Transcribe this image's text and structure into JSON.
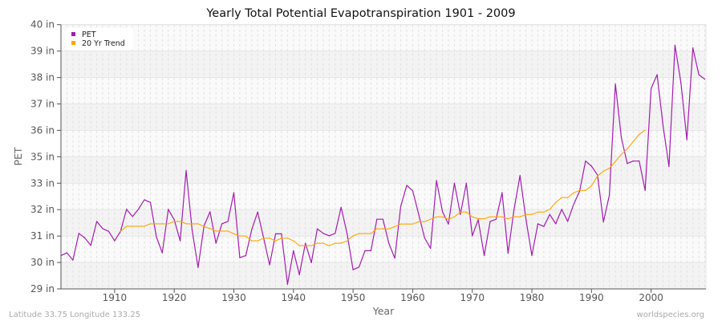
{
  "chart_data": {
    "type": "line",
    "title": "Yearly Total Potential Evapotranspiration 1901 - 2009",
    "xlabel": "Year",
    "ylabel": "PET",
    "xlim": [
      1901,
      2009
    ],
    "ylim": [
      29,
      40
    ],
    "x_ticks": [
      1910,
      1920,
      1930,
      1940,
      1950,
      1960,
      1970,
      1980,
      1990,
      2000
    ],
    "y_ticks": [
      29,
      30.1,
      31.2,
      32.3,
      33.4,
      34.5,
      35.6,
      36.7,
      37.8,
      38.9,
      40
    ],
    "y_tick_labels": [
      "29 in",
      "30 in",
      "31 in",
      "32 in",
      "33 in",
      "35 in",
      "36 in",
      "37 in",
      "38 in",
      "39 in",
      "40 in"
    ],
    "grid": true,
    "legend_position": "top-left",
    "series": [
      {
        "name": "PET",
        "color": "#a21caf",
        "x_start": 1901,
        "values": [
          30.39,
          30.5,
          30.2,
          31.31,
          31.12,
          30.81,
          31.81,
          31.51,
          31.4,
          31.0,
          31.4,
          32.31,
          32.01,
          32.32,
          32.71,
          32.6,
          31.17,
          30.5,
          32.31,
          31.88,
          31.0,
          33.93,
          31.45,
          29.89,
          31.62,
          32.21,
          30.9,
          31.71,
          31.81,
          33.01,
          30.3,
          30.39,
          31.47,
          32.2,
          31.12,
          30.0,
          31.29,
          31.29,
          29.19,
          30.59,
          29.59,
          30.9,
          30.09,
          31.5,
          31.31,
          31.21,
          31.31,
          32.4,
          31.29,
          29.8,
          29.91,
          30.59,
          30.59,
          31.9,
          31.9,
          30.9,
          30.28,
          32.43,
          33.31,
          33.09,
          32.12,
          31.12,
          30.69,
          33.51,
          32.21,
          31.7,
          33.4,
          32.1,
          33.4,
          31.21,
          31.88,
          30.39,
          31.81,
          31.9,
          33.01,
          30.48,
          32.29,
          33.72,
          31.9,
          30.39,
          31.71,
          31.6,
          32.1,
          31.71,
          32.31,
          31.81,
          32.51,
          33.07,
          34.32,
          34.11,
          33.74,
          31.79,
          32.9,
          37.53,
          35.3,
          34.22,
          34.32,
          34.32,
          33.1,
          37.34,
          37.92,
          35.8,
          34.09,
          39.14,
          37.58,
          35.21,
          39.03,
          37.92,
          37.73
        ]
      },
      {
        "name": "20 Yr Trend",
        "color": "#ffa500",
        "x_start": 1911,
        "values": [
          31.4,
          31.61,
          31.61,
          31.61,
          31.61,
          31.71,
          31.71,
          31.71,
          31.71,
          31.81,
          31.81,
          31.71,
          31.71,
          31.71,
          31.6,
          31.51,
          31.41,
          31.41,
          31.41,
          31.29,
          31.2,
          31.2,
          31.0,
          31.0,
          31.11,
          31.11,
          31.0,
          31.11,
          31.11,
          31.0,
          30.8,
          30.8,
          30.8,
          30.9,
          30.9,
          30.8,
          30.9,
          30.9,
          31.0,
          31.21,
          31.3,
          31.3,
          31.3,
          31.5,
          31.5,
          31.5,
          31.6,
          31.7,
          31.7,
          31.7,
          31.8,
          31.8,
          31.9,
          32.0,
          32.0,
          31.9,
          32.0,
          32.2,
          32.2,
          32.0,
          31.92,
          31.92,
          32.0,
          32.0,
          32.0,
          31.92,
          32.0,
          32.0,
          32.1,
          32.1,
          32.2,
          32.2,
          32.31,
          32.6,
          32.8,
          32.8,
          33.0,
          33.1,
          33.1,
          33.29,
          33.7,
          33.9,
          34.02,
          34.3,
          34.6,
          34.83,
          35.13,
          35.43,
          35.61
        ]
      }
    ]
  },
  "footer": {
    "location": "Latitude 33.75 Longitude 133.25",
    "source": "worldspecies.org"
  }
}
